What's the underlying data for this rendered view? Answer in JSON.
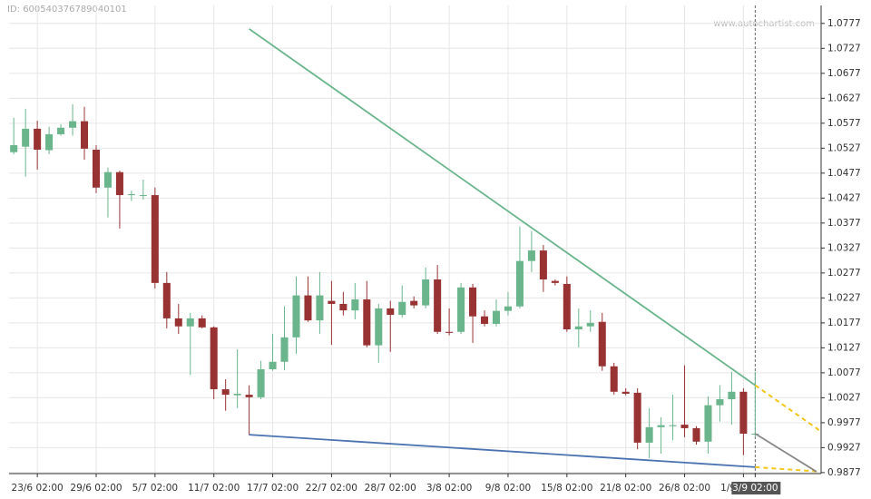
{
  "header": {
    "id": "ID: 600540376789040101",
    "watermark": "www.autochartist.com"
  },
  "chart_data": {
    "type": "candlestick",
    "categories": [
      null,
      null,
      "23/6 02:00",
      null,
      null,
      null,
      null,
      "29/6 02:00",
      null,
      null,
      null,
      null,
      "5/7 02:00",
      null,
      null,
      null,
      null,
      "11/7 02:00",
      null,
      null,
      null,
      null,
      "17/7 02:00",
      null,
      null,
      null,
      null,
      "22/7 02:00",
      null,
      null,
      null,
      null,
      "28/7 02:00",
      null,
      null,
      null,
      null,
      "3/8 02:00",
      null,
      null,
      null,
      null,
      "9/8 02:00",
      null,
      null,
      null,
      null,
      "15/8 02:00",
      null,
      null,
      null,
      null,
      "21/8 02:00",
      null,
      null,
      null,
      null,
      "26/8 02:00",
      null,
      null,
      null,
      null,
      "1/9 02:00",
      "3/9 02:00"
    ],
    "ohlc": [
      [
        1.0519,
        1.0588,
        1.0515,
        1.0533
      ],
      [
        1.053,
        1.0606,
        1.047,
        1.0566
      ],
      [
        1.0566,
        1.0582,
        1.0484,
        1.0524
      ],
      [
        1.0523,
        1.057,
        1.0515,
        1.0555
      ],
      [
        1.0555,
        1.0575,
        1.0552,
        1.0568
      ],
      [
        1.0568,
        1.0615,
        1.0552,
        1.0581
      ],
      [
        1.0581,
        1.061,
        1.0504,
        1.0526
      ],
      [
        1.0524,
        1.0533,
        1.0437,
        1.0448
      ],
      [
        1.0448,
        1.0488,
        1.0388,
        1.0479
      ],
      [
        1.0479,
        1.0482,
        1.0366,
        1.0433
      ],
      [
        1.0433,
        1.0442,
        1.0421,
        1.0435
      ],
      [
        1.0432,
        1.0464,
        1.0424,
        1.0433
      ],
      [
        1.0433,
        1.0448,
        1.0246,
        1.0257
      ],
      [
        1.0257,
        1.0279,
        1.0166,
        1.0186
      ],
      [
        1.0186,
        1.0215,
        1.0155,
        1.017
      ],
      [
        1.017,
        1.0197,
        1.0073,
        1.0186
      ],
      [
        1.0186,
        1.0192,
        1.0166,
        1.0168
      ],
      [
        1.0168,
        1.017,
        1.0024,
        1.0044
      ],
      [
        1.0044,
        1.0064,
        1.0001,
        1.0033
      ],
      [
        1.0032,
        1.0124,
        1.0006,
        1.0035
      ],
      [
        1.0033,
        1.0052,
        0.9952,
        1.0028
      ],
      [
        1.0028,
        1.0101,
        1.0024,
        1.0084
      ],
      [
        1.0084,
        1.0155,
        1.0081,
        1.0099
      ],
      [
        1.0099,
        1.021,
        1.0082,
        1.0148
      ],
      [
        1.0148,
        1.027,
        1.0115,
        1.0232
      ],
      [
        1.0232,
        1.027,
        1.0179,
        1.0182
      ],
      [
        1.0182,
        1.0279,
        1.0155,
        1.0232
      ],
      [
        1.0221,
        1.0261,
        1.0133,
        1.0215
      ],
      [
        1.0215,
        1.0239,
        1.0192,
        1.0202
      ],
      [
        1.0202,
        1.0257,
        1.0184,
        1.0224
      ],
      [
        1.0224,
        1.0261,
        1.0128,
        1.0132
      ],
      [
        1.0132,
        1.0215,
        1.0097,
        1.0206
      ],
      [
        1.0206,
        1.0221,
        1.0119,
        1.0193
      ],
      [
        1.0193,
        1.0252,
        1.0188,
        1.0219
      ],
      [
        1.0221,
        1.023,
        1.0206,
        1.0212
      ],
      [
        1.0212,
        1.0288,
        1.0206,
        1.0264
      ],
      [
        1.0264,
        1.0293,
        1.0155,
        1.0159
      ],
      [
        1.0159,
        1.0206,
        1.0152,
        1.0157
      ],
      [
        1.0159,
        1.0257,
        1.0155,
        1.0248
      ],
      [
        1.0248,
        1.0255,
        1.0137,
        1.019
      ],
      [
        1.019,
        1.0202,
        1.017,
        1.0175
      ],
      [
        1.0175,
        1.0224,
        1.017,
        1.0201
      ],
      [
        1.0201,
        1.0239,
        1.0192,
        1.021
      ],
      [
        1.021,
        1.037,
        1.0206,
        1.0301
      ],
      [
        1.0301,
        1.0361,
        1.0279,
        1.0322
      ],
      [
        1.0322,
        1.0333,
        1.0239,
        1.0264
      ],
      [
        1.0261,
        1.0264,
        1.0252,
        1.0257
      ],
      [
        1.0255,
        1.027,
        1.0159,
        1.0164
      ],
      [
        1.0164,
        1.0206,
        1.0128,
        1.017
      ],
      [
        1.017,
        1.0202,
        1.0159,
        1.0177
      ],
      [
        1.0179,
        1.0197,
        1.0081,
        1.009
      ],
      [
        1.009,
        1.0097,
        1.0033,
        1.0039
      ],
      [
        1.0039,
        1.0046,
        1.0032,
        1.0035
      ],
      [
        1.0037,
        1.0046,
        0.9924,
        0.9937
      ],
      [
        0.9937,
        1.0006,
        0.9906,
        0.9968
      ],
      [
        0.9968,
        0.9988,
        0.9915,
        0.9972
      ],
      [
        0.997,
        1.0033,
        0.9942,
        0.9972
      ],
      [
        0.9973,
        1.0092,
        0.9948,
        0.9966
      ],
      [
        0.9966,
        0.997,
        0.9933,
        0.9939
      ],
      [
        0.9939,
        1.003,
        0.9915,
        1.0012
      ],
      [
        1.0012,
        1.0052,
        0.9979,
        1.0024
      ],
      [
        1.0024,
        1.0079,
        0.9973,
        1.0039
      ],
      [
        1.0039,
        1.0046,
        0.9912,
        0.9955
      ],
      [
        0.9953,
        1.0079,
        0.9948,
        0.9955
      ]
    ],
    "up_color": "#6ab58c",
    "down_color": "#993333",
    "lines": [
      {
        "color": "#6ab58c",
        "dashed": false,
        "x": [
          20,
          63
        ],
        "values": [
          1.0766,
          1.0052
        ]
      },
      {
        "color": "#4a72b0",
        "dashed": false,
        "x": [
          20,
          63
        ],
        "values": [
          0.9953,
          0.9888
        ]
      },
      {
        "color": "#f5c518",
        "dashed": true,
        "x": [
          63,
          68.5
        ],
        "values": [
          1.0052,
          0.9961
        ]
      },
      {
        "color": "#f5c518",
        "dashed": true,
        "x": [
          63,
          68.5
        ],
        "values": [
          0.9888,
          0.9879
        ]
      },
      {
        "color": "#888888",
        "dashed": false,
        "x": [
          63,
          68.2
        ],
        "values": [
          0.9955,
          0.9879
        ]
      }
    ],
    "xlim": [
      -0.4,
      68.6
    ],
    "ylim": [
      0.9875,
      1.0813
    ],
    "yticks": [
      1.0777,
      1.0727,
      1.0677,
      1.0627,
      1.0577,
      1.0527,
      1.0477,
      1.0427,
      1.0377,
      1.0327,
      1.0277,
      1.0227,
      1.0177,
      1.0127,
      1.0077,
      1.0027,
      0.9977,
      0.9927,
      0.9877
    ],
    "grid": true
  }
}
